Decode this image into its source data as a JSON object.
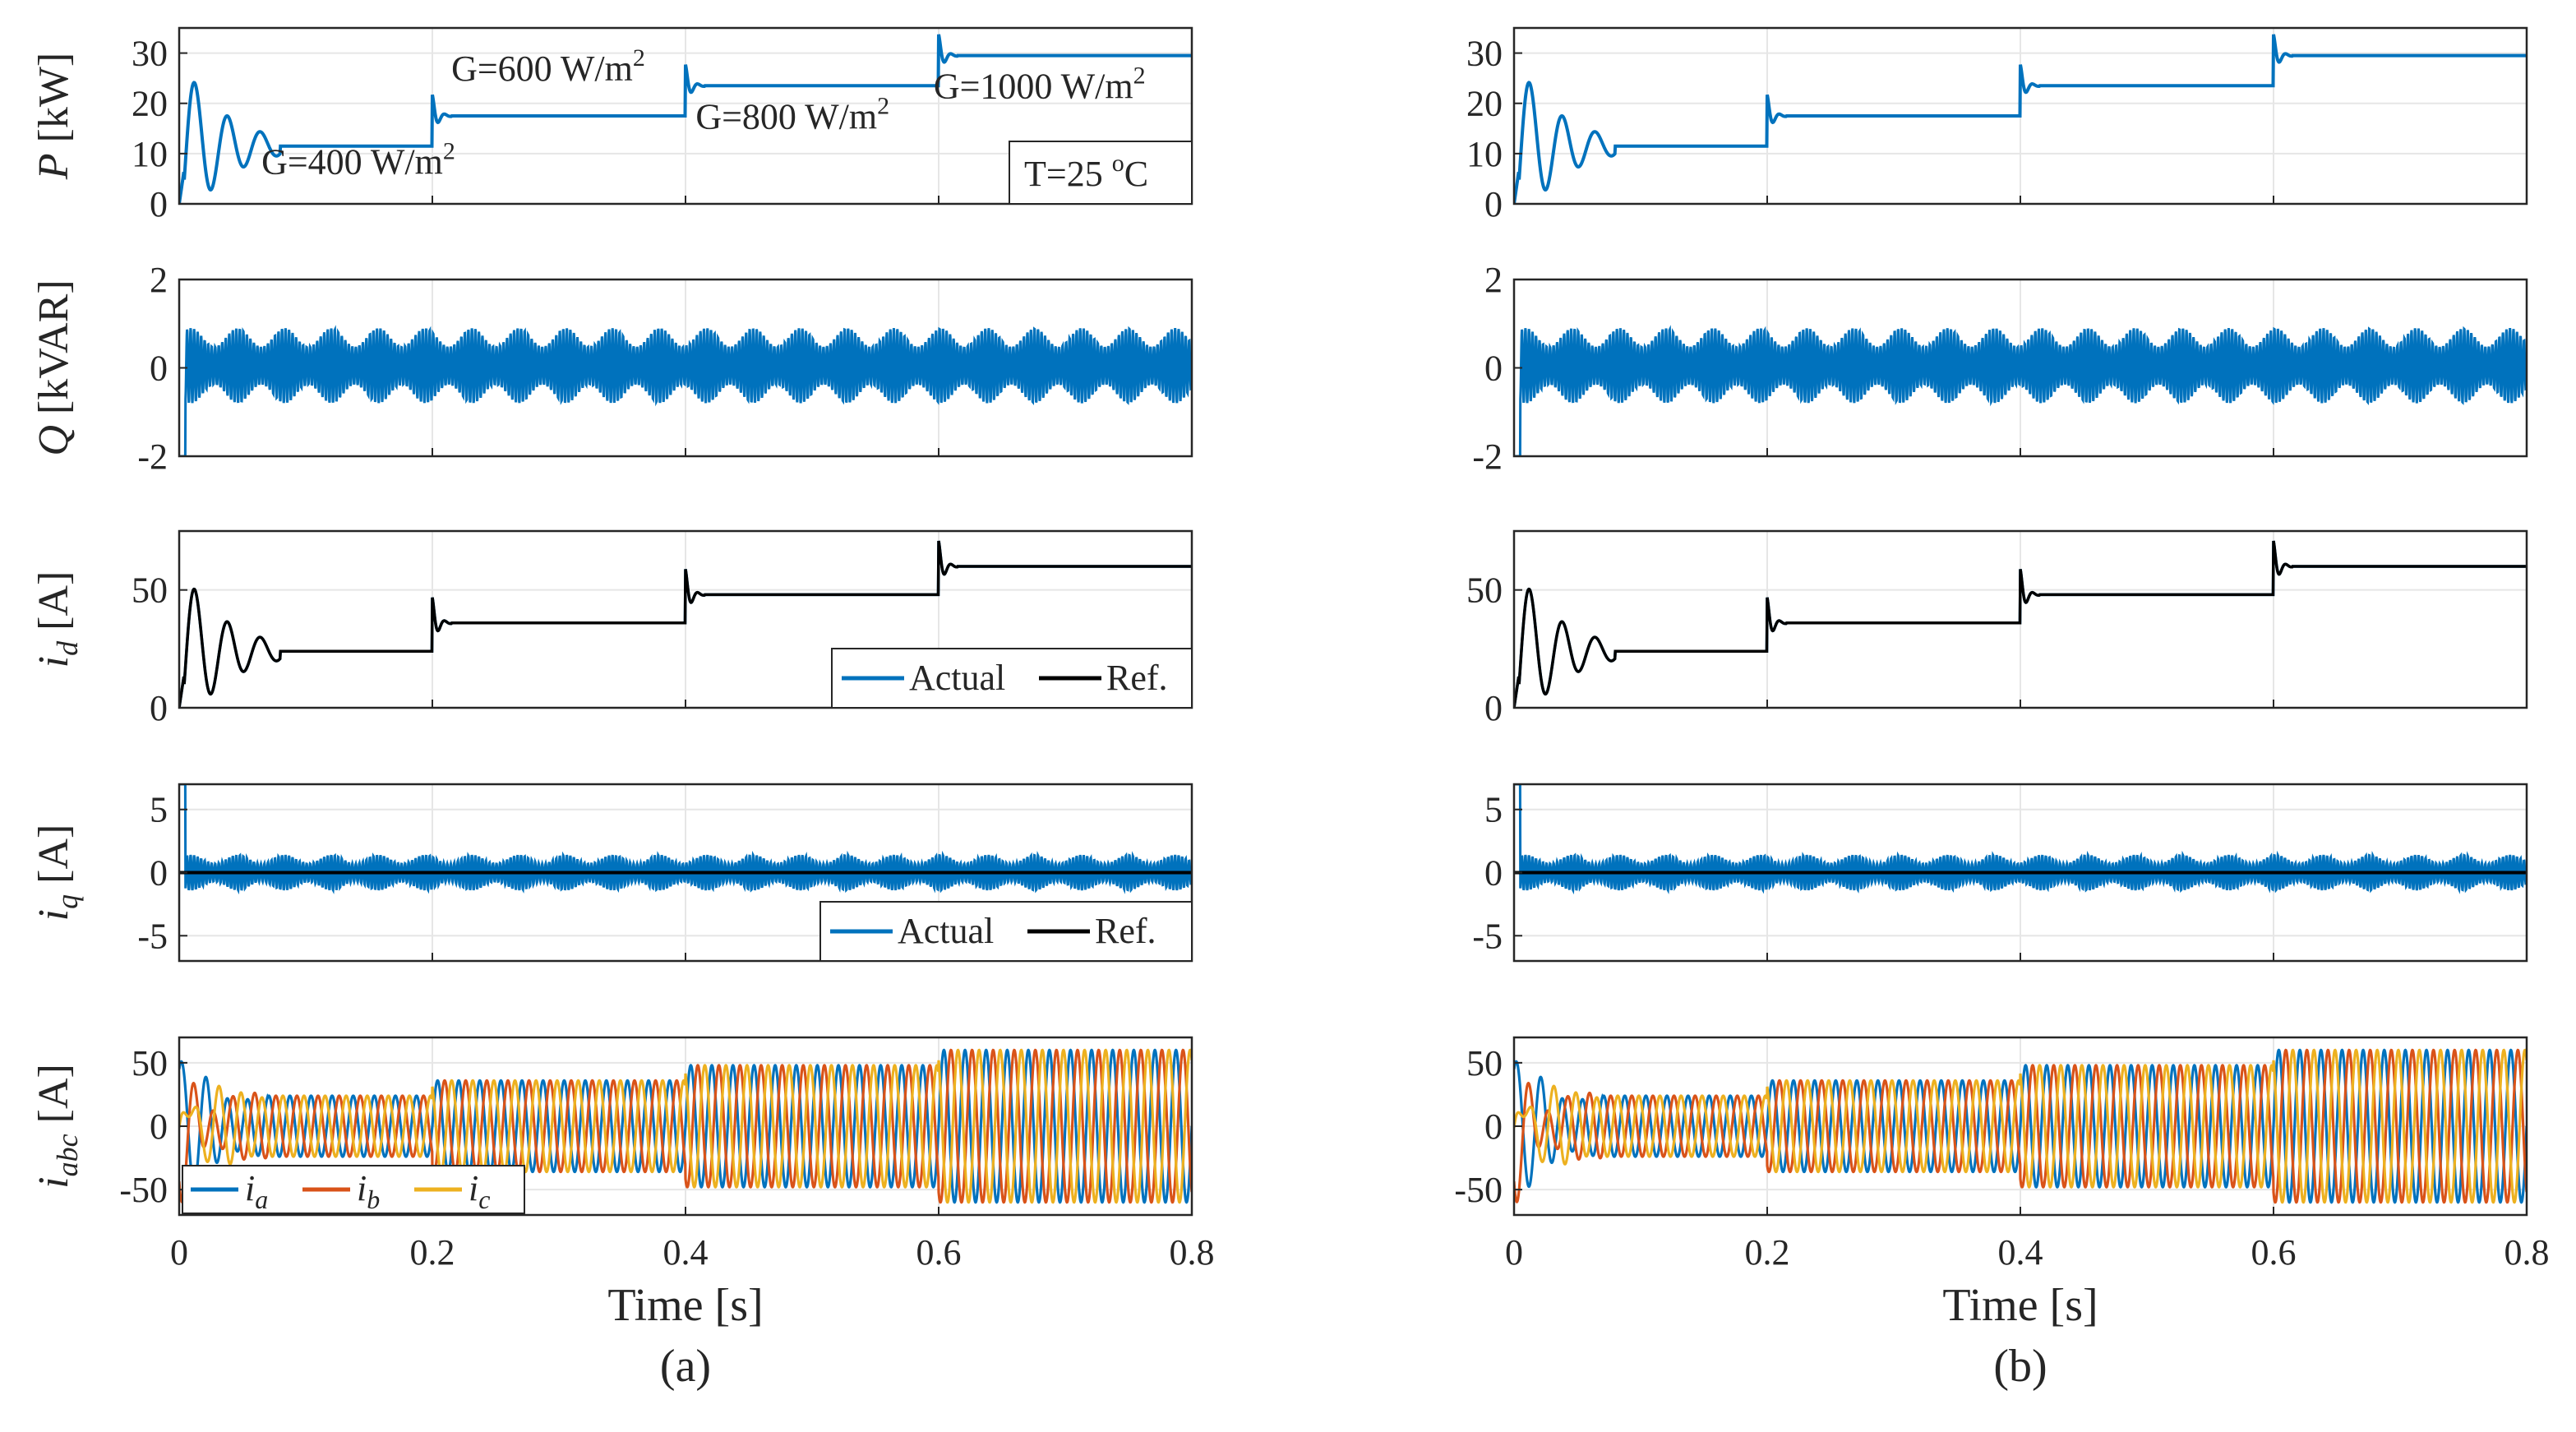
{
  "chart_data": [
    {
      "panel": "a",
      "caption": "(a)",
      "xlabel": "Time [s]",
      "xlim": [
        0,
        0.8
      ],
      "xticks": [
        "0",
        "0.2",
        "0.4",
        "0.6",
        "0.8"
      ],
      "subplots": [
        {
          "id": "P",
          "type": "line",
          "ylabel": {
            "var": "P",
            "sub": "",
            "unit": "[kW]"
          },
          "ylim": [
            0,
            35
          ],
          "yticks": [
            {
              "v": 0,
              "t": "0"
            },
            {
              "v": 10,
              "t": "10"
            },
            {
              "v": 20,
              "t": "20"
            },
            {
              "v": 30,
              "t": "30"
            }
          ],
          "series": [
            {
              "name": "P",
              "color": "#0072BD",
              "segments": [
                [
                  0.0,
                  0.2,
                  11.5
                ],
                [
                  0.2,
                  0.4,
                  17.5
                ],
                [
                  0.4,
                  0.6,
                  23.5
                ],
                [
                  0.6,
                  0.8,
                  29.5
                ]
              ]
            }
          ],
          "annotations": [
            {
              "text": "G=400 W/m",
              "sup": "2",
              "t": 0.065,
              "y": 6
            },
            {
              "text": "G=600 W/m",
              "sup": "2",
              "t": 0.215,
              "y": 24.5
            },
            {
              "text": "G=800 W/m",
              "sup": "2",
              "t": 0.408,
              "y": 15
            },
            {
              "text": "G=1000 W/m",
              "sup": "2",
              "t": 0.596,
              "y": 21
            }
          ],
          "boxnote": {
            "text": "T=25 ",
            "sup": "o",
            "tail": "C"
          }
        },
        {
          "id": "Q",
          "type": "line",
          "ylabel": {
            "var": "Q",
            "sub": "",
            "unit": "[kVAR]"
          },
          "ylim": [
            -2,
            2
          ],
          "yticks": [
            {
              "v": -2,
              "t": "-2"
            },
            {
              "v": 0,
              "t": "0"
            },
            {
              "v": 2,
              "t": "2"
            }
          ],
          "series": [
            {
              "name": "Q",
              "color": "#0072BD",
              "mean": 0.05,
              "amplitude": 0.85
            }
          ]
        },
        {
          "id": "id",
          "type": "line",
          "ylabel": {
            "var": "i",
            "sub": "d",
            "unit": "[A]"
          },
          "ylim": [
            0,
            75
          ],
          "yticks": [
            {
              "v": 0,
              "t": "0"
            },
            {
              "v": 50,
              "t": "50"
            }
          ],
          "series": [
            {
              "name": "Actual",
              "color": "#0072BD",
              "segments": [
                [
                  0.0,
                  0.2,
                  24
                ],
                [
                  0.2,
                  0.4,
                  36
                ],
                [
                  0.4,
                  0.6,
                  48
                ],
                [
                  0.6,
                  0.8,
                  60
                ]
              ]
            },
            {
              "name": "Ref.",
              "color": "#000000",
              "segments": [
                [
                  0.0,
                  0.2,
                  24
                ],
                [
                  0.2,
                  0.4,
                  36
                ],
                [
                  0.4,
                  0.6,
                  48
                ],
                [
                  0.6,
                  0.8,
                  60
                ]
              ]
            }
          ],
          "legend": {
            "location": "bottom-right",
            "entries": [
              "Actual",
              "Ref."
            ]
          }
        },
        {
          "id": "iq",
          "type": "line",
          "ylabel": {
            "var": "i",
            "sub": "q",
            "unit": "[A]"
          },
          "ylim": [
            -7,
            7
          ],
          "yticks": [
            {
              "v": -5,
              "t": "-5"
            },
            {
              "v": 0,
              "t": "0"
            },
            {
              "v": 5,
              "t": "5"
            }
          ],
          "series": [
            {
              "name": "Actual",
              "color": "#0072BD",
              "mean": 0,
              "amplitude": 1.4
            },
            {
              "name": "Ref.",
              "color": "#000000",
              "value": 0
            }
          ],
          "legend": {
            "location": "bottom-right",
            "entries": [
              "Actual",
              "Ref."
            ]
          }
        },
        {
          "id": "iabc",
          "type": "line",
          "ylabel": {
            "var": "i",
            "sub": "abc",
            "unit": "[A]"
          },
          "ylim": [
            -70,
            70
          ],
          "yticks": [
            {
              "v": -50,
              "t": "-50"
            },
            {
              "v": 0,
              "t": "0"
            },
            {
              "v": 50,
              "t": "50"
            }
          ],
          "series": [
            {
              "name": "i_a",
              "label": "i",
              "sub": "a",
              "color": "#0072BD",
              "phase_deg": 0
            },
            {
              "name": "i_b",
              "label": "i",
              "sub": "b",
              "color": "#D95319",
              "phase_deg": -120
            },
            {
              "name": "i_c",
              "label": "i",
              "sub": "c",
              "color": "#EDB120",
              "phase_deg": 120
            }
          ],
          "amplitude_segments": [
            [
              0.0,
              0.2,
              24
            ],
            [
              0.2,
              0.4,
              36
            ],
            [
              0.4,
              0.6,
              48
            ],
            [
              0.6,
              0.8,
              60
            ]
          ],
          "frequency_hz": 60,
          "legend": {
            "location": "bottom-left",
            "entries": [
              "i_a",
              "i_b",
              "i_c"
            ]
          }
        }
      ]
    },
    {
      "panel": "b",
      "caption": "(b)",
      "xlabel": "Time [s]",
      "xlim": [
        0,
        0.8
      ],
      "xticks": [
        "0",
        "0.2",
        "0.4",
        "0.6",
        "0.8"
      ],
      "subplots": [
        {
          "id": "P",
          "type": "line",
          "ylabel": {
            "var": "",
            "sub": "",
            "unit": ""
          },
          "ylim": [
            0,
            35
          ],
          "yticks": [
            {
              "v": 0,
              "t": "0"
            },
            {
              "v": 10,
              "t": "10"
            },
            {
              "v": 20,
              "t": "20"
            },
            {
              "v": 30,
              "t": "30"
            }
          ],
          "series": [
            {
              "name": "P",
              "color": "#0072BD",
              "segments": [
                [
                  0.0,
                  0.2,
                  11.5
                ],
                [
                  0.2,
                  0.4,
                  17.5
                ],
                [
                  0.4,
                  0.6,
                  23.5
                ],
                [
                  0.6,
                  0.8,
                  29.5
                ]
              ]
            }
          ]
        },
        {
          "id": "Q",
          "type": "line",
          "ylabel": {
            "var": "",
            "sub": "",
            "unit": ""
          },
          "ylim": [
            -2,
            2
          ],
          "yticks": [
            {
              "v": -2,
              "t": "-2"
            },
            {
              "v": 0,
              "t": "0"
            },
            {
              "v": 2,
              "t": "2"
            }
          ],
          "series": [
            {
              "name": "Q",
              "color": "#0072BD",
              "mean": 0.05,
              "amplitude": 0.85
            }
          ]
        },
        {
          "id": "id",
          "type": "line",
          "ylabel": {
            "var": "",
            "sub": "",
            "unit": ""
          },
          "ylim": [
            0,
            75
          ],
          "yticks": [
            {
              "v": 0,
              "t": "0"
            },
            {
              "v": 50,
              "t": "50"
            }
          ],
          "series": [
            {
              "name": "Actual",
              "color": "#0072BD",
              "segments": [
                [
                  0.0,
                  0.2,
                  24
                ],
                [
                  0.2,
                  0.4,
                  36
                ],
                [
                  0.4,
                  0.6,
                  48
                ],
                [
                  0.6,
                  0.8,
                  60
                ]
              ]
            },
            {
              "name": "Ref.",
              "color": "#000000",
              "segments": [
                [
                  0.0,
                  0.2,
                  24
                ],
                [
                  0.2,
                  0.4,
                  36
                ],
                [
                  0.4,
                  0.6,
                  48
                ],
                [
                  0.6,
                  0.8,
                  60
                ]
              ]
            }
          ]
        },
        {
          "id": "iq",
          "type": "line",
          "ylabel": {
            "var": "",
            "sub": "",
            "unit": ""
          },
          "ylim": [
            -7,
            7
          ],
          "yticks": [
            {
              "v": -5,
              "t": "-5"
            },
            {
              "v": 0,
              "t": "0"
            },
            {
              "v": 5,
              "t": "5"
            }
          ],
          "series": [
            {
              "name": "Actual",
              "color": "#0072BD",
              "mean": 0,
              "amplitude": 1.4
            },
            {
              "name": "Ref.",
              "color": "#000000",
              "value": 0
            }
          ]
        },
        {
          "id": "iabc",
          "type": "line",
          "ylabel": {
            "var": "",
            "sub": "",
            "unit": ""
          },
          "ylim": [
            -70,
            70
          ],
          "yticks": [
            {
              "v": -50,
              "t": "-50"
            },
            {
              "v": 0,
              "t": "0"
            },
            {
              "v": 50,
              "t": "50"
            }
          ],
          "series": [
            {
              "name": "i_a",
              "label": "i",
              "sub": "a",
              "color": "#0072BD",
              "phase_deg": 0
            },
            {
              "name": "i_b",
              "label": "i",
              "sub": "b",
              "color": "#D95319",
              "phase_deg": -120
            },
            {
              "name": "i_c",
              "label": "i",
              "sub": "c",
              "color": "#EDB120",
              "phase_deg": 120
            }
          ],
          "amplitude_segments": [
            [
              0.0,
              0.2,
              24
            ],
            [
              0.2,
              0.4,
              36
            ],
            [
              0.4,
              0.6,
              48
            ],
            [
              0.6,
              0.8,
              60
            ]
          ],
          "frequency_hz": 60
        }
      ]
    }
  ]
}
